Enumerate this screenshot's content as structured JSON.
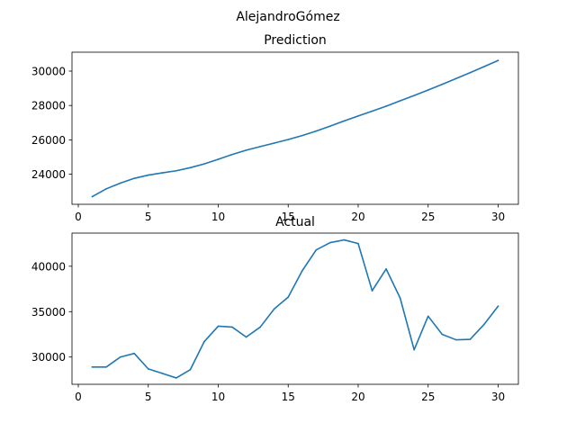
{
  "figure": {
    "suptitle": "AlejandroGómez",
    "line_color": "#1f77b4"
  },
  "chart_data": [
    {
      "type": "line",
      "title": "Prediction",
      "xlabel": "",
      "ylabel": "",
      "grid": false,
      "xlim": [
        -0.45,
        31.45
      ],
      "ylim": [
        22250,
        31100
      ],
      "xticks": [
        0,
        5,
        10,
        15,
        20,
        25,
        30
      ],
      "yticks": [
        24000,
        26000,
        28000,
        30000
      ],
      "x": [
        1,
        2,
        3,
        4,
        5,
        6,
        7,
        8,
        9,
        10,
        11,
        12,
        13,
        14,
        15,
        16,
        17,
        18,
        19,
        20,
        21,
        22,
        23,
        24,
        25,
        26,
        27,
        28,
        29,
        30
      ],
      "series": [
        {
          "values": [
            22700,
            23150,
            23480,
            23760,
            23950,
            24080,
            24200,
            24380,
            24600,
            24870,
            25150,
            25400,
            25610,
            25810,
            26020,
            26250,
            26510,
            26800,
            27100,
            27390,
            27670,
            27960,
            28270,
            28580,
            28900,
            29230,
            29570,
            29910,
            30260,
            30620
          ]
        }
      ]
    },
    {
      "type": "line",
      "title": "Actual",
      "xlabel": "",
      "ylabel": "",
      "grid": false,
      "xlim": [
        -0.45,
        31.45
      ],
      "ylim": [
        27000,
        43650
      ],
      "xticks": [
        0,
        5,
        10,
        15,
        20,
        25,
        30
      ],
      "yticks": [
        30000,
        35000,
        40000
      ],
      "x": [
        1,
        2,
        3,
        4,
        5,
        6,
        7,
        8,
        9,
        10,
        11,
        12,
        13,
        14,
        15,
        16,
        17,
        18,
        19,
        20,
        21,
        22,
        23,
        24,
        25,
        26,
        27,
        28,
        29,
        30
      ],
      "series": [
        {
          "values": [
            28900,
            28900,
            30000,
            30400,
            28700,
            28200,
            27700,
            28600,
            31700,
            33400,
            33300,
            32200,
            33300,
            35300,
            36600,
            39500,
            41800,
            42600,
            42900,
            42500,
            37300,
            39700,
            36500,
            30800,
            34500,
            32500,
            31900,
            31950,
            33600,
            35600
          ]
        }
      ]
    }
  ]
}
